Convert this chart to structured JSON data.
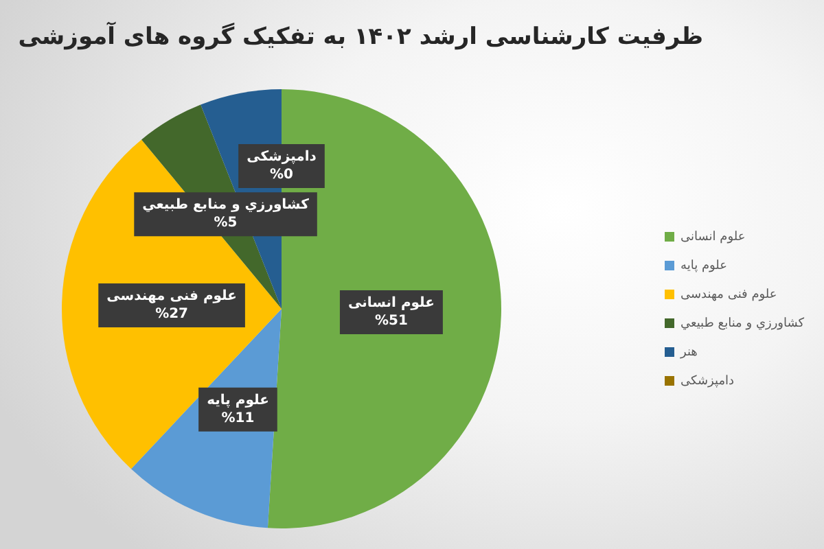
{
  "chart_data": {
    "type": "pie",
    "title": "ظرفیت کارشناسی ارشد ۱۴۰۲ به تفکیک گروه های آموزشی",
    "categories": [
      "علوم انسانی",
      "علوم پایه",
      "علوم فنی مهندسی",
      "کشاورزي و منابع طبيعي",
      "هنر",
      "دامپزشکی"
    ],
    "values": [
      51,
      11,
      27,
      5,
      6,
      0
    ],
    "colors": [
      "#70ad47",
      "#5b9bd5",
      "#ffc000",
      "#43682b",
      "#255e91",
      "#997300"
    ],
    "value_labels": [
      "%51",
      "%11",
      "%27",
      "%5",
      null,
      "%0"
    ],
    "legend": "right"
  }
}
